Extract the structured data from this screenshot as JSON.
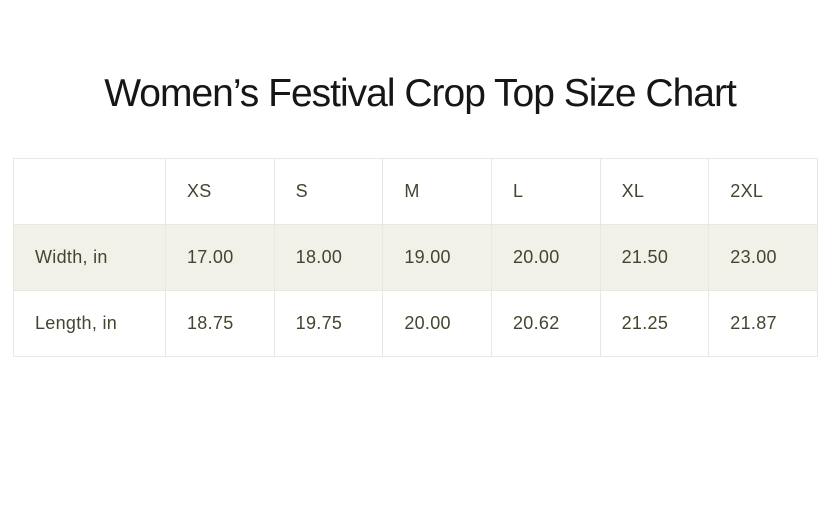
{
  "page": {
    "title": "Women’s Festival Crop Top Size Chart"
  },
  "size_chart": {
    "corner_label": "",
    "columns": [
      "XS",
      "S",
      "M",
      "L",
      "XL",
      "2XL"
    ],
    "rows": [
      {
        "label": "Width, in",
        "values": [
          "17.00",
          "18.00",
          "19.00",
          "20.00",
          "21.50",
          "23.00"
        ]
      },
      {
        "label": "Length, in",
        "values": [
          "18.75",
          "19.75",
          "20.00",
          "20.62",
          "21.25",
          "21.87"
        ]
      }
    ]
  },
  "colors": {
    "text": "#45452f",
    "title": "#161616",
    "row_stripe": "#f2f1e9",
    "border": "#e9e7df",
    "background": "#ffffff"
  }
}
